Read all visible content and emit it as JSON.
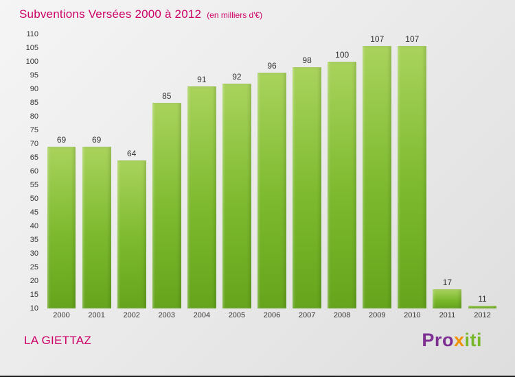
{
  "colors": {
    "accent_pink": "#cc0066",
    "text_dark": "#333333",
    "bar_gradient": [
      "#a9d35c",
      "#7cb92e",
      "#65a41c"
    ]
  },
  "chart_data": {
    "type": "bar",
    "title": "Subventions Versées 2000 à 2012",
    "subtitle": "(en milliers d'€)",
    "categories": [
      "2000",
      "2001",
      "2002",
      "2003",
      "2004",
      "2005",
      "2006",
      "2007",
      "2008",
      "2009",
      "2010",
      "2011",
      "2012"
    ],
    "values": [
      69,
      69,
      64,
      85,
      91,
      92,
      96,
      98,
      100,
      107,
      107,
      17,
      11
    ],
    "xlabel": "",
    "ylabel": "",
    "ylim": [
      10,
      110
    ],
    "ytick_step": 5,
    "grid": false,
    "legend": "none",
    "value_labels_shown": true
  },
  "footer": {
    "name": "LA GIETTAZ"
  },
  "logo": {
    "name": "Proxiti",
    "letters": [
      {
        "ch": "P",
        "color": "#7d2f92"
      },
      {
        "ch": "r",
        "color": "#7d2f92"
      },
      {
        "ch": "o",
        "color": "#7d2f92"
      },
      {
        "ch": "x",
        "color": "#f39200"
      },
      {
        "ch": "i",
        "color": "#76b82a"
      },
      {
        "ch": "t",
        "color": "#76b82a"
      },
      {
        "ch": "i",
        "color": "#76b82a"
      }
    ]
  }
}
